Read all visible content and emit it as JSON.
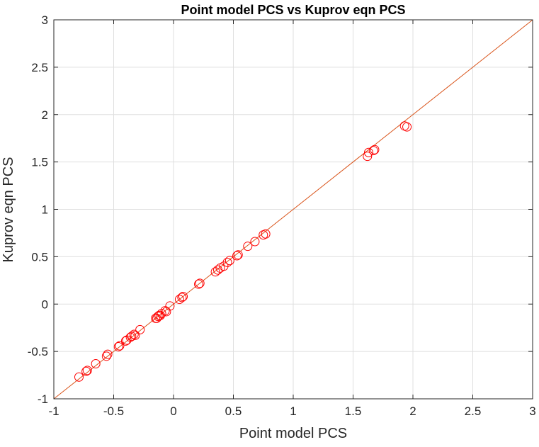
{
  "colors": {
    "background": "#ffffff",
    "axes": "#262626",
    "grid": "#dfdfdf",
    "marker": "#ff0000",
    "reference_line": "#d95319"
  },
  "chart_data": {
    "type": "scatter",
    "title": "Point model PCS vs Kuprov eqn PCS",
    "xlabel": "Point model PCS",
    "ylabel": "Kuprov eqn PCS",
    "xlim": [
      -1,
      3
    ],
    "ylim": [
      -1,
      3
    ],
    "xticks": [
      -1,
      -0.5,
      0,
      0.5,
      1,
      1.5,
      2,
      2.5,
      3
    ],
    "yticks": [
      -1,
      -0.5,
      0,
      0.5,
      1,
      1.5,
      2,
      2.5,
      3
    ],
    "xtick_labels": [
      "-1",
      "-0.5",
      "0",
      "0.5",
      "1",
      "1.5",
      "2",
      "2.5",
      "3"
    ],
    "ytick_labels": [
      "-1",
      "-0.5",
      "0",
      "0.5",
      "1",
      "1.5",
      "2",
      "2.5",
      "3"
    ],
    "grid": true,
    "box": true,
    "marker": "open-circle",
    "reference_line": {
      "x": [
        -1,
        3
      ],
      "y": [
        -1,
        3
      ]
    },
    "series": [
      {
        "points": [
          [
            -0.79,
            -0.77
          ],
          [
            -0.73,
            -0.71
          ],
          [
            -0.72,
            -0.7
          ],
          [
            -0.65,
            -0.63
          ],
          [
            -0.56,
            -0.55
          ],
          [
            -0.55,
            -0.53
          ],
          [
            -0.46,
            -0.45
          ],
          [
            -0.45,
            -0.44
          ],
          [
            -0.4,
            -0.39
          ],
          [
            -0.39,
            -0.38
          ],
          [
            -0.36,
            -0.35
          ],
          [
            -0.35,
            -0.34
          ],
          [
            -0.33,
            -0.32
          ],
          [
            -0.32,
            -0.33
          ],
          [
            -0.28,
            -0.27
          ],
          [
            -0.15,
            -0.15
          ],
          [
            -0.14,
            -0.15
          ],
          [
            -0.13,
            -0.13
          ],
          [
            -0.12,
            -0.12
          ],
          [
            -0.11,
            -0.12
          ],
          [
            -0.1,
            -0.1
          ],
          [
            -0.07,
            -0.07
          ],
          [
            -0.06,
            -0.08
          ],
          [
            -0.03,
            -0.02
          ],
          [
            0.05,
            0.05
          ],
          [
            0.07,
            0.07
          ],
          [
            0.08,
            0.08
          ],
          [
            0.21,
            0.21
          ],
          [
            0.22,
            0.22
          ],
          [
            0.35,
            0.34
          ],
          [
            0.37,
            0.36
          ],
          [
            0.39,
            0.38
          ],
          [
            0.42,
            0.4
          ],
          [
            0.45,
            0.44
          ],
          [
            0.47,
            0.46
          ],
          [
            0.53,
            0.51
          ],
          [
            0.54,
            0.52
          ],
          [
            0.62,
            0.61
          ],
          [
            0.68,
            0.66
          ],
          [
            0.75,
            0.73
          ],
          [
            0.77,
            0.74
          ],
          [
            1.62,
            1.56
          ],
          [
            1.63,
            1.6
          ],
          [
            1.67,
            1.62
          ],
          [
            1.68,
            1.63
          ],
          [
            1.93,
            1.88
          ],
          [
            1.95,
            1.87
          ]
        ]
      }
    ]
  }
}
